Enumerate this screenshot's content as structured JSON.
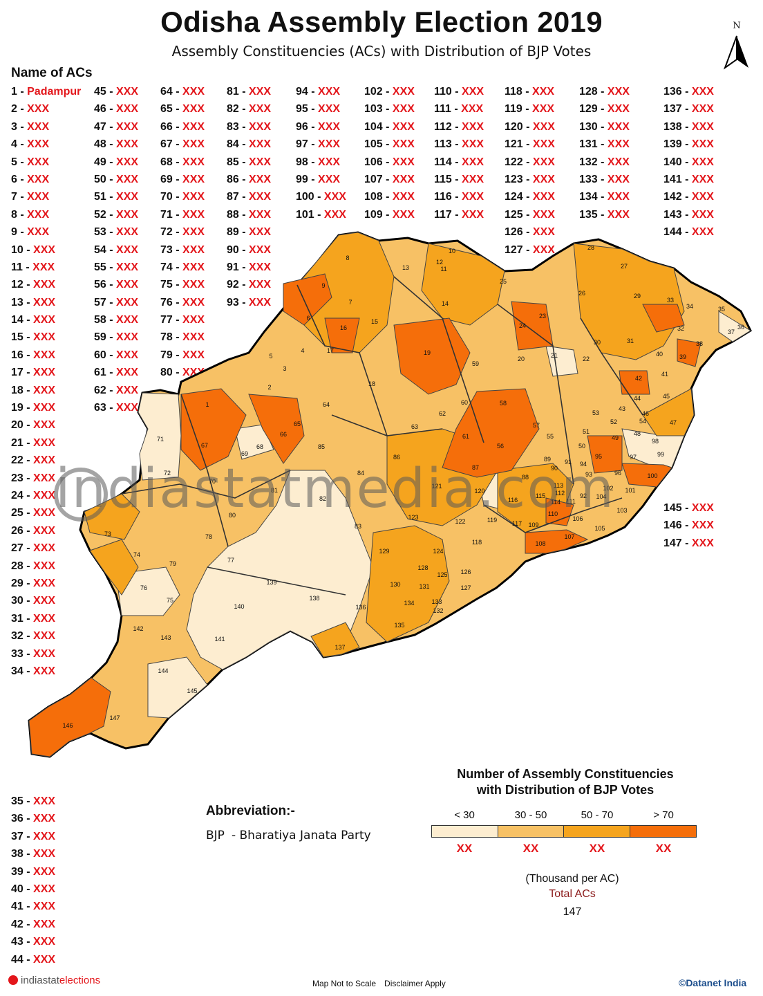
{
  "title": "Odisha Assembly Election 2019",
  "subtitle": "Assembly Constituencies (ACs) with Distribution of BJP Votes",
  "north_label": "N",
  "acs_heading": "Name of ACs",
  "ac_columns": [
    {
      "start": 1,
      "end": 34,
      "first_name": "Padampur"
    },
    {
      "start": 45,
      "end": 63
    },
    {
      "start": 64,
      "end": 80
    },
    {
      "start": 81,
      "end": 93
    },
    {
      "start": 94,
      "end": 101
    },
    {
      "start": 102,
      "end": 109
    },
    {
      "start": 110,
      "end": 117
    },
    {
      "start": 118,
      "end": 127
    },
    {
      "start": 128,
      "end": 135
    },
    {
      "start": 136,
      "end": 144
    },
    {
      "start": 145,
      "end": 147
    },
    {
      "start": 35,
      "end": 44
    }
  ],
  "placeholder_name": "XXX",
  "watermark": "indiastatmedia.com",
  "legend": {
    "title_line1": "Number of Assembly Constituencies",
    "title_line2": "with Distribution of BJP Votes",
    "categories": [
      {
        "label": "< 30",
        "color": "#fdedd0",
        "count": "XX"
      },
      {
        "label": "30 - 50",
        "color": "#f7c165",
        "count": "XX"
      },
      {
        "label": "50 - 70",
        "color": "#f5a41e",
        "count": "XX"
      },
      {
        "label": "> 70",
        "color": "#f56e0a",
        "count": "XX"
      }
    ],
    "units": "(Thousand per AC)",
    "total_label": "Total ACs",
    "total_value": "147"
  },
  "abbreviation": {
    "heading": "Abbreviation:-",
    "code": "BJP",
    "meaning": "- Bharatiya Janata Party"
  },
  "footer": {
    "brand_a": "indiastat",
    "brand_b": "elections",
    "scale_note": "Map Not to Scale",
    "disclaimer": "Disclaimer Apply",
    "copyright": "©Datanet India"
  },
  "map_labels": [
    "1",
    "2",
    "3",
    "4",
    "5",
    "6",
    "7",
    "8",
    "9",
    "10",
    "11",
    "12",
    "13",
    "14",
    "15",
    "16",
    "17",
    "18",
    "19",
    "20",
    "21",
    "22",
    "23",
    "24",
    "25",
    "26",
    "27",
    "28",
    "29",
    "30",
    "31",
    "32",
    "33",
    "34",
    "35",
    "36",
    "37",
    "38",
    "39",
    "40",
    "41",
    "42",
    "43",
    "44",
    "45",
    "46",
    "47",
    "48",
    "49",
    "50",
    "51",
    "52",
    "53",
    "54",
    "55",
    "56",
    "57",
    "58",
    "59",
    "60",
    "61",
    "62",
    "63",
    "64",
    "65",
    "66",
    "67",
    "68",
    "69",
    "70",
    "71",
    "72",
    "73",
    "74",
    "75",
    "76",
    "77",
    "78",
    "79",
    "80",
    "81",
    "82",
    "83",
    "84",
    "85",
    "86",
    "87",
    "88",
    "89",
    "90",
    "91",
    "92",
    "93",
    "94",
    "95",
    "96",
    "97",
    "98",
    "99",
    "100",
    "101",
    "102",
    "103",
    "104",
    "105",
    "106",
    "107",
    "108",
    "109",
    "110",
    "111",
    "112",
    "113",
    "114",
    "115",
    "116",
    "117",
    "118",
    "119",
    "120",
    "121",
    "122",
    "123",
    "124",
    "125",
    "126",
    "127",
    "128",
    "129",
    "130",
    "131",
    "132",
    "133",
    "134",
    "135",
    "136",
    "137",
    "138",
    "139",
    "140",
    "141",
    "142",
    "143",
    "144",
    "145",
    "146",
    "147"
  ]
}
